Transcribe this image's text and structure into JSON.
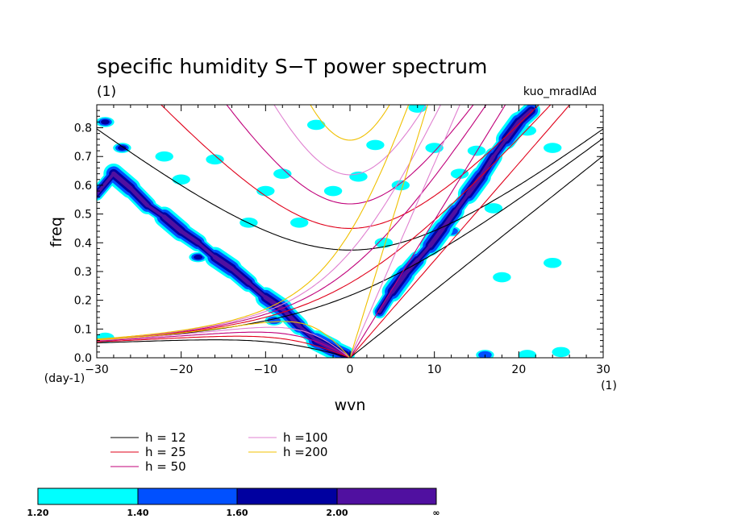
{
  "chart_data": {
    "type": "heatmap",
    "title": "specific humidity S−T power spectrum",
    "subtitle": "(1)",
    "case_label": "kuo_mradlAd",
    "xlabel": "wvn",
    "ylabel": "freq",
    "x_unit": "(1)",
    "y_unit": "(day-1)",
    "xlim": [
      -30,
      30
    ],
    "ylim": [
      0,
      0.88
    ],
    "x_ticks": [
      -30,
      -20,
      -10,
      0,
      10,
      20,
      30
    ],
    "x_tick_labels": [
      "−30",
      "−20",
      "−10",
      "0",
      "10",
      "20",
      "30"
    ],
    "y_ticks": [
      0,
      0.1,
      0.2,
      0.3,
      0.4,
      0.5,
      0.6,
      0.7,
      0.8
    ],
    "y_tick_labels": [
      "0.0",
      "0.1",
      "0.2",
      "0.3",
      "0.4",
      "0.5",
      "0.6",
      "0.7",
      "0.8"
    ],
    "dispersion_curves": [
      {
        "label": "h = 12",
        "h": 12,
        "color": "#000000"
      },
      {
        "label": "h = 25",
        "h": 25,
        "color": "#e0001a"
      },
      {
        "label": "h = 50",
        "h": 50,
        "color": "#c0007a"
      },
      {
        "label": "h =100",
        "h": 100,
        "color": "#e080d0"
      },
      {
        "label": "h =200",
        "h": 200,
        "color": "#f0c000"
      }
    ],
    "color_levels": [
      {
        "from": "1.20",
        "to": "1.40",
        "color": "#00ffff"
      },
      {
        "from": "1.40",
        "to": "1.60",
        "color": "#0050ff"
      },
      {
        "from": "1.60",
        "to": "2.00",
        "color": "#0000a0"
      },
      {
        "from": "2.00",
        "to": "∞",
        "color": "#5010a0"
      }
    ],
    "colorbar_labels": [
      "1.20",
      "1.40",
      "1.60",
      "2.00",
      "∞"
    ],
    "power_bands": [
      {
        "name": "westward",
        "points": [
          [
            -30,
            0.57
          ],
          [
            -28,
            0.64
          ],
          [
            -26,
            0.59
          ],
          [
            -24,
            0.53
          ],
          [
            -22,
            0.49
          ],
          [
            -20,
            0.44
          ],
          [
            -18,
            0.4
          ],
          [
            -16,
            0.35
          ],
          [
            -14,
            0.31
          ],
          [
            -12,
            0.26
          ],
          [
            -10,
            0.21
          ],
          [
            -8,
            0.17
          ],
          [
            -6,
            0.11
          ],
          [
            -4,
            0.06
          ],
          [
            -2,
            0.03
          ],
          [
            -0.5,
            0.01
          ]
        ]
      },
      {
        "name": "eastward",
        "points": [
          [
            3.5,
            0.16
          ],
          [
            5,
            0.23
          ],
          [
            6.5,
            0.29
          ],
          [
            8,
            0.34
          ],
          [
            9.5,
            0.39
          ],
          [
            11,
            0.45
          ],
          [
            12.5,
            0.51
          ],
          [
            14,
            0.57
          ],
          [
            15.5,
            0.63
          ],
          [
            17,
            0.7
          ],
          [
            18.5,
            0.76
          ],
          [
            20,
            0.82
          ],
          [
            21.5,
            0.86
          ]
        ]
      }
    ],
    "power_patches": [
      [
        -29,
        0.82,
        2
      ],
      [
        -27,
        0.73,
        2
      ],
      [
        -18,
        0.35,
        2
      ],
      [
        -9,
        0.13,
        1
      ],
      [
        -4,
        0.05,
        3
      ],
      [
        1,
        0.63,
        0
      ],
      [
        -8,
        0.64,
        0
      ],
      [
        -2,
        0.58,
        0
      ],
      [
        -12,
        0.47,
        0
      ],
      [
        -16,
        0.69,
        0
      ],
      [
        3,
        0.74,
        0
      ],
      [
        -4,
        0.81,
        0
      ],
      [
        10,
        0.73,
        0
      ],
      [
        15,
        0.72,
        0
      ],
      [
        17,
        0.52,
        0
      ],
      [
        12,
        0.44,
        1
      ],
      [
        16,
        0.01,
        1
      ],
      [
        21,
        0.01,
        0
      ],
      [
        25,
        0.02,
        0
      ],
      [
        -29,
        0.07,
        0
      ],
      [
        24,
        0.33,
        0
      ],
      [
        13,
        0.64,
        0
      ],
      [
        18,
        0.28,
        0
      ],
      [
        -22,
        0.7,
        0
      ],
      [
        6,
        0.6,
        0
      ],
      [
        -6,
        0.47,
        0
      ],
      [
        8,
        0.87,
        0
      ],
      [
        21,
        0.79,
        0
      ],
      [
        24,
        0.73,
        0
      ],
      [
        -10,
        0.58,
        0
      ],
      [
        -20,
        0.62,
        0
      ],
      [
        4,
        0.4,
        0
      ]
    ]
  },
  "legend": {
    "col1": [
      "h = 12",
      "h = 25",
      "h = 50"
    ],
    "col2": [
      "h =100",
      "h =200"
    ]
  }
}
